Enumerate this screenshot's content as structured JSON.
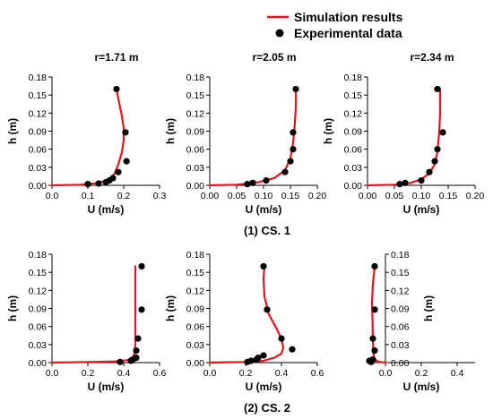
{
  "legend": {
    "sim_label": "Simulation results",
    "exp_label": "Experimental data",
    "sim_color": "#e8141b",
    "exp_color": "#000000"
  },
  "sections": [
    "(1) CS. 1",
    "(2) CS. 2"
  ],
  "chart_data": [
    {
      "type": "line",
      "title": "r=1.71 m",
      "xlabel": "U (m/s)",
      "ylabel": "h (m)",
      "xlim": [
        0,
        0.3
      ],
      "ylim": [
        0,
        0.18
      ],
      "xticks": [
        0.0,
        0.1,
        0.2,
        0.3
      ],
      "xtick_labels": [
        "0.0",
        "0.1",
        "0.2",
        "0.3"
      ],
      "yticks": [
        0,
        0.03,
        0.06,
        0.09,
        0.12,
        0.15,
        0.18
      ],
      "ytick_labels": [
        "0.00",
        "0.03",
        "0.06",
        "0.09",
        "0.12",
        "0.15",
        "0.18"
      ],
      "series": [
        {
          "kind": "line",
          "x": [
            0.0,
            0.08,
            0.13,
            0.16,
            0.175,
            0.185,
            0.195,
            0.2,
            0.2,
            0.195,
            0.188,
            0.183,
            0.18
          ],
          "y": [
            0.0,
            0.001,
            0.004,
            0.01,
            0.02,
            0.035,
            0.055,
            0.075,
            0.095,
            0.115,
            0.135,
            0.15,
            0.16
          ]
        },
        {
          "kind": "scatter",
          "x": [
            0.1,
            0.13,
            0.15,
            0.16,
            0.17,
            0.185,
            0.208,
            0.205,
            0.18
          ],
          "y": [
            0.002,
            0.003,
            0.005,
            0.008,
            0.012,
            0.022,
            0.04,
            0.088,
            0.16
          ]
        }
      ]
    },
    {
      "type": "line",
      "title": "r=2.05 m",
      "xlabel": "U (m/s)",
      "ylabel": "h (m)",
      "xlim": [
        0,
        0.2
      ],
      "ylim": [
        0,
        0.18
      ],
      "xticks": [
        0.0,
        0.05,
        0.1,
        0.15,
        0.2
      ],
      "xtick_labels": [
        "0.00",
        "0.05",
        "0.10",
        "0.15",
        "0.20"
      ],
      "yticks": [
        0,
        0.03,
        0.06,
        0.09,
        0.12,
        0.15,
        0.18
      ],
      "ytick_labels": [
        "0.00",
        "0.03",
        "0.06",
        "0.09",
        "0.12",
        "0.15",
        "0.18"
      ],
      "series": [
        {
          "kind": "line",
          "x": [
            0.0,
            0.05,
            0.09,
            0.12,
            0.14,
            0.15,
            0.155,
            0.158,
            0.16,
            0.16
          ],
          "y": [
            0.0,
            0.001,
            0.005,
            0.012,
            0.025,
            0.045,
            0.07,
            0.1,
            0.13,
            0.16
          ]
        },
        {
          "kind": "scatter",
          "x": [
            0.07,
            0.08,
            0.105,
            0.14,
            0.15,
            0.155,
            0.155,
            0.16
          ],
          "y": [
            0.002,
            0.004,
            0.008,
            0.022,
            0.04,
            0.06,
            0.088,
            0.16
          ]
        }
      ]
    },
    {
      "type": "line",
      "title": "r=2.34 m",
      "xlabel": "U (m/s)",
      "ylabel": "h (m)",
      "xlim": [
        0,
        0.2
      ],
      "ylim": [
        0,
        0.18
      ],
      "xticks": [
        0.0,
        0.05,
        0.1,
        0.15,
        0.2
      ],
      "xtick_labels": [
        "0.00",
        "0.05",
        "0.10",
        "0.15",
        "0.20"
      ],
      "yticks": [
        0,
        0.03,
        0.06,
        0.09,
        0.12,
        0.15,
        0.18
      ],
      "ytick_labels": [
        "0.00",
        "0.03",
        "0.06",
        "0.09",
        "0.12",
        "0.15",
        "0.18"
      ],
      "series": [
        {
          "kind": "line",
          "x": [
            0.0,
            0.05,
            0.08,
            0.1,
            0.115,
            0.125,
            0.13,
            0.133,
            0.135,
            0.135
          ],
          "y": [
            0.0,
            0.001,
            0.004,
            0.01,
            0.02,
            0.035,
            0.055,
            0.085,
            0.12,
            0.16
          ]
        },
        {
          "kind": "scatter",
          "x": [
            0.06,
            0.07,
            0.1,
            0.115,
            0.125,
            0.13,
            0.14,
            0.13
          ],
          "y": [
            0.002,
            0.004,
            0.008,
            0.022,
            0.04,
            0.06,
            0.088,
            0.16
          ]
        }
      ]
    },
    {
      "type": "line",
      "title": "",
      "xlabel": "U (m/s)",
      "ylabel": "h (m)",
      "xlim": [
        0,
        0.6
      ],
      "ylim": [
        0,
        0.18
      ],
      "xticks": [
        0.0,
        0.2,
        0.4,
        0.6
      ],
      "xtick_labels": [
        "0.0",
        "0.2",
        "0.4",
        "0.6"
      ],
      "yticks": [
        0,
        0.03,
        0.06,
        0.09,
        0.12,
        0.15,
        0.18
      ],
      "ytick_labels": [
        "0.00",
        "0.03",
        "0.06",
        "0.09",
        "0.12",
        "0.15",
        "0.18"
      ],
      "series": [
        {
          "kind": "line",
          "x": [
            0.0,
            0.2,
            0.35,
            0.42,
            0.45,
            0.46,
            0.465,
            0.465,
            0.465
          ],
          "y": [
            0.0,
            0.001,
            0.002,
            0.004,
            0.008,
            0.015,
            0.03,
            0.1,
            0.16
          ]
        },
        {
          "kind": "scatter",
          "x": [
            0.38,
            0.44,
            0.45,
            0.47,
            0.47,
            0.48,
            0.5,
            0.5
          ],
          "y": [
            0.001,
            0.003,
            0.005,
            0.008,
            0.02,
            0.04,
            0.088,
            0.16
          ]
        }
      ]
    },
    {
      "type": "line",
      "title": "",
      "xlabel": "U (m/s)",
      "ylabel": "h (m)",
      "xlim": [
        0,
        0.6
      ],
      "ylim": [
        0,
        0.18
      ],
      "xticks": [
        0.0,
        0.2,
        0.4,
        0.6
      ],
      "xtick_labels": [
        "0.0",
        "0.2",
        "0.4",
        "0.6"
      ],
      "yticks": [
        0,
        0.03,
        0.06,
        0.09,
        0.12,
        0.15,
        0.18
      ],
      "ytick_labels": [
        "0.00",
        "0.03",
        "0.06",
        "0.09",
        "0.12",
        "0.15",
        "0.18"
      ],
      "series": [
        {
          "kind": "line",
          "x": [
            0.0,
            0.2,
            0.3,
            0.36,
            0.4,
            0.41,
            0.4,
            0.37,
            0.33,
            0.305,
            0.3,
            0.305
          ],
          "y": [
            0.0,
            0.001,
            0.003,
            0.008,
            0.015,
            0.025,
            0.04,
            0.058,
            0.08,
            0.11,
            0.14,
            0.16
          ]
        },
        {
          "kind": "scatter",
          "x": [
            0.21,
            0.23,
            0.26,
            0.27,
            0.3,
            0.46,
            0.4,
            0.32,
            0.3
          ],
          "y": [
            0.001,
            0.003,
            0.005,
            0.008,
            0.012,
            0.022,
            0.04,
            0.088,
            0.16
          ]
        }
      ]
    },
    {
      "type": "line",
      "title": "",
      "xlabel": "U (m/s)",
      "ylabel": "h (m)",
      "xlim": [
        -0.1,
        0.5
      ],
      "ylim": [
        0,
        0.18
      ],
      "xticks": [
        0.0,
        0.2,
        0.4
      ],
      "xtick_labels": [
        "0.0",
        "0.2",
        "0.4"
      ],
      "yticks": [
        0,
        0.03,
        0.06,
        0.09,
        0.12,
        0.15,
        0.18
      ],
      "ytick_labels": [
        "0.00",
        "0.03",
        "0.06",
        "0.09",
        "0.12",
        "0.15",
        "0.18"
      ],
      "yaxis_side": "right",
      "series": [
        {
          "kind": "line",
          "x": [
            0.0,
            -0.03,
            -0.05,
            -0.06,
            -0.065,
            -0.068,
            -0.07,
            -0.072,
            -0.075,
            -0.07,
            -0.06
          ],
          "y": [
            0.0,
            0.001,
            0.003,
            0.006,
            0.01,
            0.02,
            0.04,
            0.07,
            0.1,
            0.13,
            0.16
          ]
        },
        {
          "kind": "scatter",
          "x": [
            -0.08,
            -0.09,
            -0.07,
            -0.06,
            -0.07,
            -0.06,
            -0.06
          ],
          "y": [
            0.001,
            0.003,
            0.005,
            0.02,
            0.04,
            0.088,
            0.16
          ]
        }
      ]
    }
  ]
}
